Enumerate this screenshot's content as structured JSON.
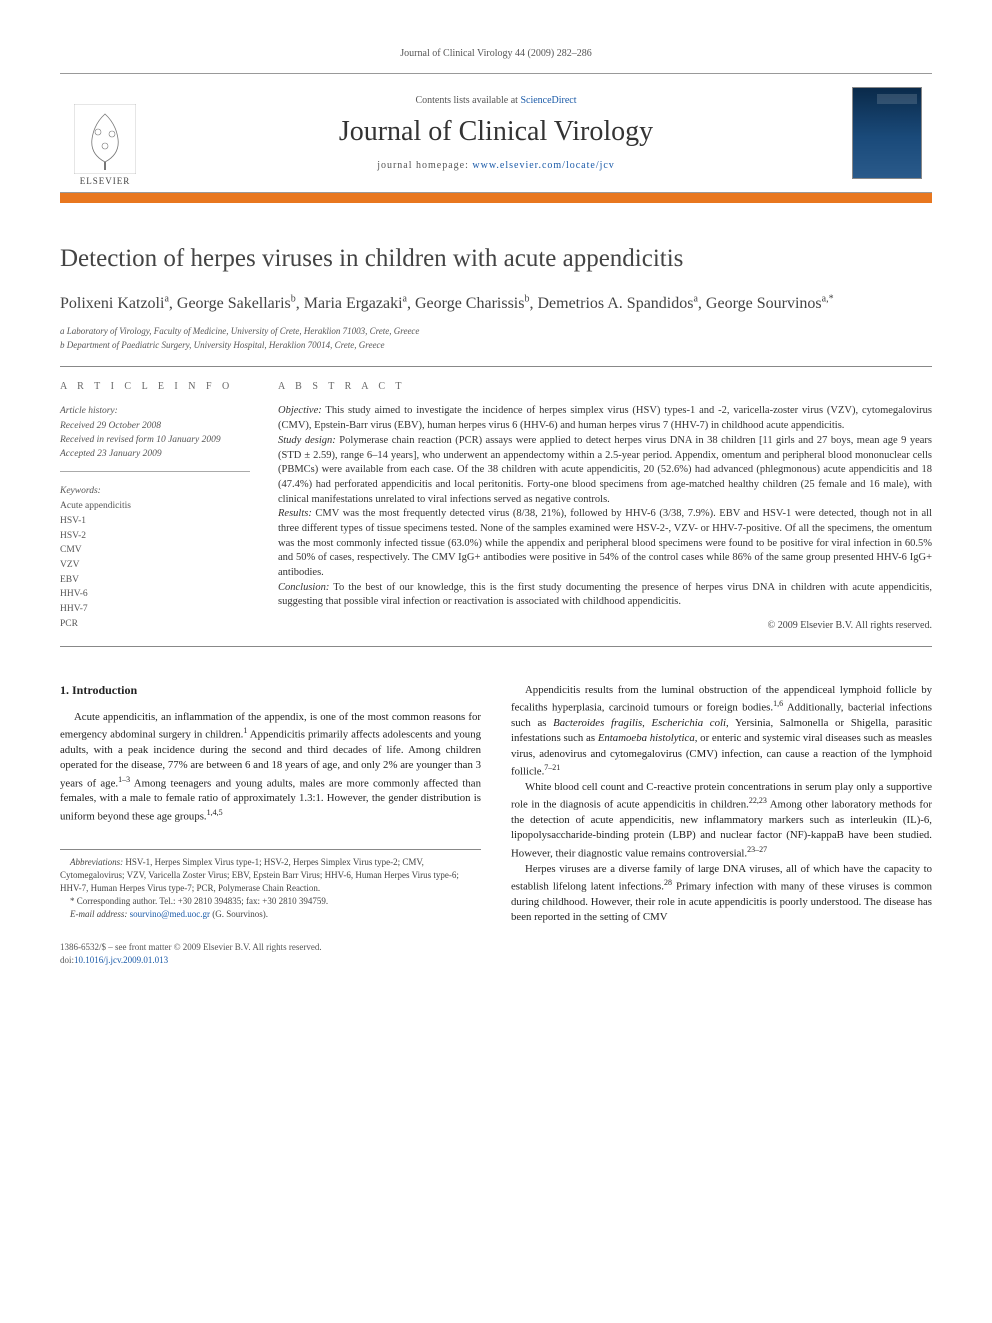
{
  "running_header": "Journal of Clinical Virology 44 (2009) 282–286",
  "masthead": {
    "contents_prefix": "Contents lists available at ",
    "contents_link": "ScienceDirect",
    "journal_name": "Journal of Clinical Virology",
    "homepage_prefix": "journal homepage: ",
    "homepage_url": "www.elsevier.com/locate/jcv",
    "publisher_name": "ELSEVIER",
    "cover_label": "VIROLOGY"
  },
  "colors": {
    "accent_bar": "#e8771f",
    "link": "#1a5aa8",
    "text": "#2a2a2a",
    "muted": "#555555",
    "rule": "#888888",
    "cover_gradient_top": "#0a2a4a",
    "cover_gradient_bottom": "#2a5a8a",
    "background": "#ffffff"
  },
  "typography": {
    "title_fontsize_pt": 19,
    "journal_name_fontsize_pt": 21,
    "authors_fontsize_pt": 12,
    "body_fontsize_pt": 8,
    "abstract_fontsize_pt": 8,
    "font_family": "Georgia / serif"
  },
  "article": {
    "title": "Detection of herpes viruses in children with acute appendicitis",
    "authors_html": "Polixeni Katzoli<sup>a</sup>, George Sakellaris<sup>b</sup>, Maria Ergazaki<sup>a</sup>, George Charissis<sup>b</sup>, Demetrios A. Spandidos<sup>a</sup>, George Sourvinos<sup>a,*</sup>",
    "affiliations": [
      "a Laboratory of Virology, Faculty of Medicine, University of Crete, Heraklion 71003, Crete, Greece",
      "b Department of Paediatric Surgery, University Hospital, Heraklion 70014, Crete, Greece"
    ]
  },
  "article_info": {
    "section_label": "A R T I C L E   I N F O",
    "history_label": "Article history:",
    "history": [
      "Received 29 October 2008",
      "Received in revised form 10 January 2009",
      "Accepted 23 January 2009"
    ],
    "keywords_label": "Keywords:",
    "keywords": [
      "Acute appendicitis",
      "HSV-1",
      "HSV-2",
      "CMV",
      "VZV",
      "EBV",
      "HHV-6",
      "HHV-7",
      "PCR"
    ]
  },
  "abstract": {
    "section_label": "A B S T R A C T",
    "segments": [
      {
        "label": "Objective:",
        "text": " This study aimed to investigate the incidence of herpes simplex virus (HSV) types-1 and -2, varicella-zoster virus (VZV), cytomegalovirus (CMV), Epstein-Barr virus (EBV), human herpes virus 6 (HHV-6) and human herpes virus 7 (HHV-7) in childhood acute appendicitis."
      },
      {
        "label": "Study design:",
        "text": " Polymerase chain reaction (PCR) assays were applied to detect herpes virus DNA in 38 children [11 girls and 27 boys, mean age 9 years (STD ± 2.59), range 6–14 years], who underwent an appendectomy within a 2.5-year period. Appendix, omentum and peripheral blood mononuclear cells (PBMCs) were available from each case. Of the 38 children with acute appendicitis, 20 (52.6%) had advanced (phlegmonous) acute appendicitis and 18 (47.4%) had perforated appendicitis and local peritonitis. Forty-one blood specimens from age-matched healthy children (25 female and 16 male), with clinical manifestations unrelated to viral infections served as negative controls."
      },
      {
        "label": "Results:",
        "text": " CMV was the most frequently detected virus (8/38, 21%), followed by HHV-6 (3/38, 7.9%). EBV and HSV-1 were detected, though not in all three different types of tissue specimens tested. None of the samples examined were HSV-2-, VZV- or HHV-7-positive. Of all the specimens, the omentum was the most commonly infected tissue (63.0%) while the appendix and peripheral blood specimens were found to be positive for viral infection in 60.5% and 50% of cases, respectively. The CMV IgG+ antibodies were positive in 54% of the control cases while 86% of the same group presented HHV-6 IgG+ antibodies."
      },
      {
        "label": "Conclusion:",
        "text": " To the best of our knowledge, this is the first study documenting the presence of herpes virus DNA in children with acute appendicitis, suggesting that possible viral infection or reactivation is associated with childhood appendicitis."
      }
    ],
    "copyright": "© 2009 Elsevier B.V. All rights reserved."
  },
  "body": {
    "section_number": "1.",
    "section_title": "Introduction",
    "left_paragraphs": [
      "Acute appendicitis, an inflammation of the appendix, is one of the most common reasons for emergency abdominal surgery in children.<sup>1</sup> Appendicitis primarily affects adolescents and young adults, with a peak incidence during the second and third decades of life. Among children operated for the disease, 77% are between 6 and 18 years of age, and only 2% are younger than 3 years of age.<sup>1–3</sup> Among teenagers and young adults, males are more commonly affected than females, with a male to female ratio of approximately 1.3:1. However, the gender distribution is uniform beyond these age groups.<sup>1,4,5</sup>"
    ],
    "right_paragraphs": [
      "Appendicitis results from the luminal obstruction of the appendiceal lymphoid follicle by fecaliths hyperplasia, carcinoid tumours or foreign bodies.<sup>1,6</sup> Additionally, bacterial infections such as <i>Bacteroides fragilis</i>, <i>Escherichia coli</i>, Yersinia, Salmonella or Shigella, parasitic infestations such as <i>Entamoeba histolytica</i>, or enteric and systemic viral diseases such as measles virus, adenovirus and cytomegalovirus (CMV) infection, can cause a reaction of the lymphoid follicle.<sup>7–21</sup>",
      "White blood cell count and C-reactive protein concentrations in serum play only a supportive role in the diagnosis of acute appendicitis in children.<sup>22,23</sup> Among other laboratory methods for the detection of acute appendicitis, new inflammatory markers such as interleukin (IL)-6, lipopolysaccharide-binding protein (LBP) and nuclear factor (NF)-kappaB have been studied. However, their diagnostic value remains controversial.<sup>23–27</sup>",
      "Herpes viruses are a diverse family of large DNA viruses, all of which have the capacity to establish lifelong latent infections.<sup>28</sup> Primary infection with many of these viruses is common during childhood. However, their role in acute appendicitis is poorly understood. The disease has been reported in the setting of CMV"
    ]
  },
  "footnotes": {
    "abbrev_label": "Abbreviations:",
    "abbrev_text": " HSV-1, Herpes Simplex Virus type-1; HSV-2, Herpes Simplex Virus type-2; CMV, Cytomegalovirus; VZV, Varicella Zoster Virus; EBV, Epstein Barr Virus; HHV-6, Human Herpes Virus type-6; HHV-7, Human Herpes Virus type-7; PCR, Polymerase Chain Reaction.",
    "corr_marker": "*",
    "corr_text": " Corresponding author. Tel.: +30 2810 394835; fax: +30 2810 394759.",
    "email_label": "E-mail address:",
    "email_value": " sourvino@med.uoc.gr",
    "email_person": " (G. Sourvinos)."
  },
  "bottom": {
    "issn_line": "1386-6532/$ – see front matter © 2009 Elsevier B.V. All rights reserved.",
    "doi_prefix": "doi:",
    "doi_value": "10.1016/j.jcv.2009.01.013"
  }
}
